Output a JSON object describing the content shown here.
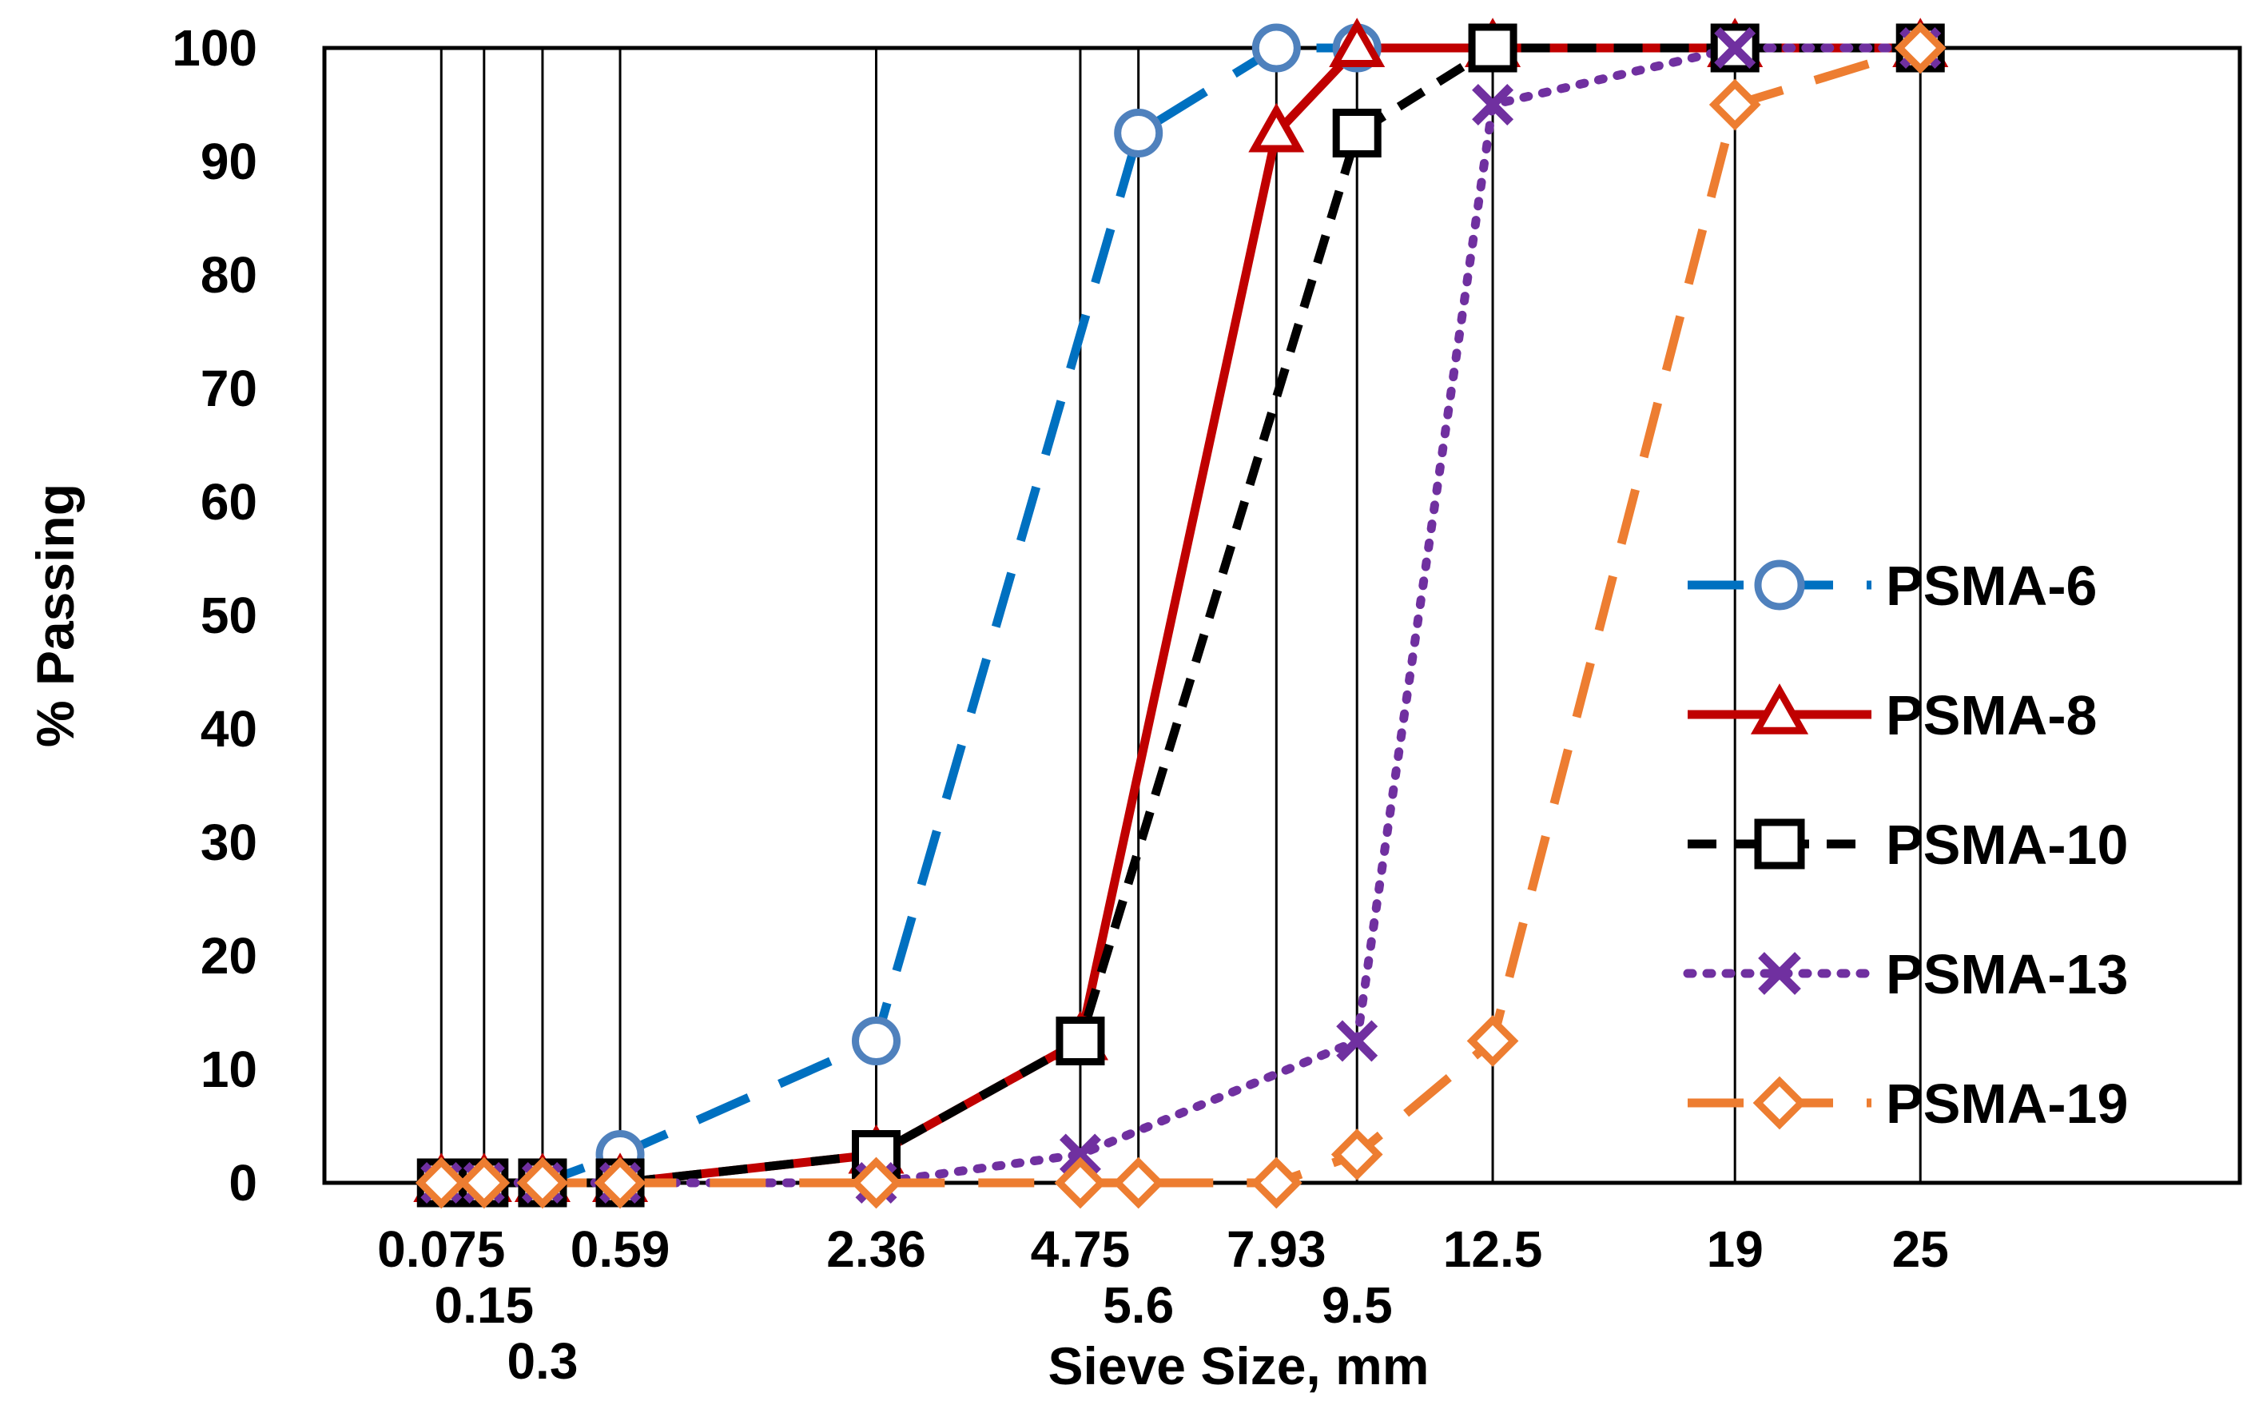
{
  "chart_data": {
    "type": "line",
    "title": "",
    "xlabel": "Sieve Size, mm",
    "ylabel": "% Passing",
    "x_scale": "power 0.45",
    "xlim": [
      0,
      37.5
    ],
    "ylim": [
      0,
      100
    ],
    "y_ticks": [
      0,
      10,
      20,
      30,
      40,
      50,
      60,
      70,
      80,
      90,
      100
    ],
    "x_ticks": [
      {
        "value": 0.075,
        "label": "0.075",
        "row": 0
      },
      {
        "value": 0.15,
        "label": "0.15",
        "row": 1
      },
      {
        "value": 0.3,
        "label": "0.3",
        "row": 2
      },
      {
        "value": 0.59,
        "label": "0.59",
        "row": 0
      },
      {
        "value": 2.36,
        "label": "2.36",
        "row": 0
      },
      {
        "value": 4.75,
        "label": "4.75",
        "row": 0
      },
      {
        "value": 5.6,
        "label": "5.6",
        "row": 1
      },
      {
        "value": 7.93,
        "label": "7.93",
        "row": 0
      },
      {
        "value": 9.5,
        "label": "9.5",
        "row": 1
      },
      {
        "value": 12.5,
        "label": "12.5",
        "row": 0
      },
      {
        "value": 19,
        "label": "19",
        "row": 0
      },
      {
        "value": 25,
        "label": "25",
        "row": 0
      }
    ],
    "grid": "vertical lines at sieve sizes",
    "legend_position": "right",
    "series": [
      {
        "name": "PSMA-6",
        "color": "#0070C0",
        "marker_color": "#4F81BD",
        "marker": "circle",
        "dash": "long-dash",
        "x": [
          0.075,
          0.15,
          0.3,
          0.59,
          2.36,
          5.6,
          7.93,
          9.5,
          12.5,
          19,
          25
        ],
        "y": [
          0,
          0,
          0,
          2.5,
          12.5,
          92.5,
          100,
          100,
          100,
          100,
          100
        ]
      },
      {
        "name": "PSMA-8",
        "color": "#C00000",
        "marker_color": "#C00000",
        "marker": "triangle",
        "dash": "solid",
        "x": [
          0.075,
          0.15,
          0.3,
          0.59,
          2.36,
          4.75,
          7.93,
          9.5,
          12.5,
          19,
          25
        ],
        "y": [
          0,
          0,
          0,
          0,
          2.5,
          12.5,
          92.5,
          100,
          100,
          100,
          100
        ]
      },
      {
        "name": "PSMA-10",
        "color": "#000000",
        "marker_color": "#000000",
        "marker": "square",
        "dash": "dash",
        "x": [
          0.075,
          0.15,
          0.3,
          0.59,
          2.36,
          4.75,
          9.5,
          12.5,
          19,
          25
        ],
        "y": [
          0,
          0,
          0,
          0,
          2.5,
          12.5,
          92.5,
          100,
          100,
          100
        ]
      },
      {
        "name": "PSMA-13",
        "color": "#7030A0",
        "marker_color": "#7030A0",
        "marker": "x",
        "dash": "dot",
        "x": [
          0.075,
          0.15,
          0.3,
          0.59,
          2.36,
          4.75,
          9.5,
          12.5,
          19,
          25
        ],
        "y": [
          0,
          0,
          0,
          0,
          0,
          2.5,
          12.5,
          95,
          100,
          100
        ]
      },
      {
        "name": "PSMA-19",
        "color": "#ED7D31",
        "marker_color": "#ED7D31",
        "marker": "diamond",
        "dash": "long-dash",
        "x": [
          0.075,
          0.15,
          0.3,
          0.59,
          2.36,
          4.75,
          5.6,
          7.93,
          9.5,
          12.5,
          19,
          25
        ],
        "y": [
          0,
          0,
          0,
          0,
          0,
          0,
          0,
          0,
          2.5,
          12.5,
          95,
          100
        ]
      }
    ]
  }
}
